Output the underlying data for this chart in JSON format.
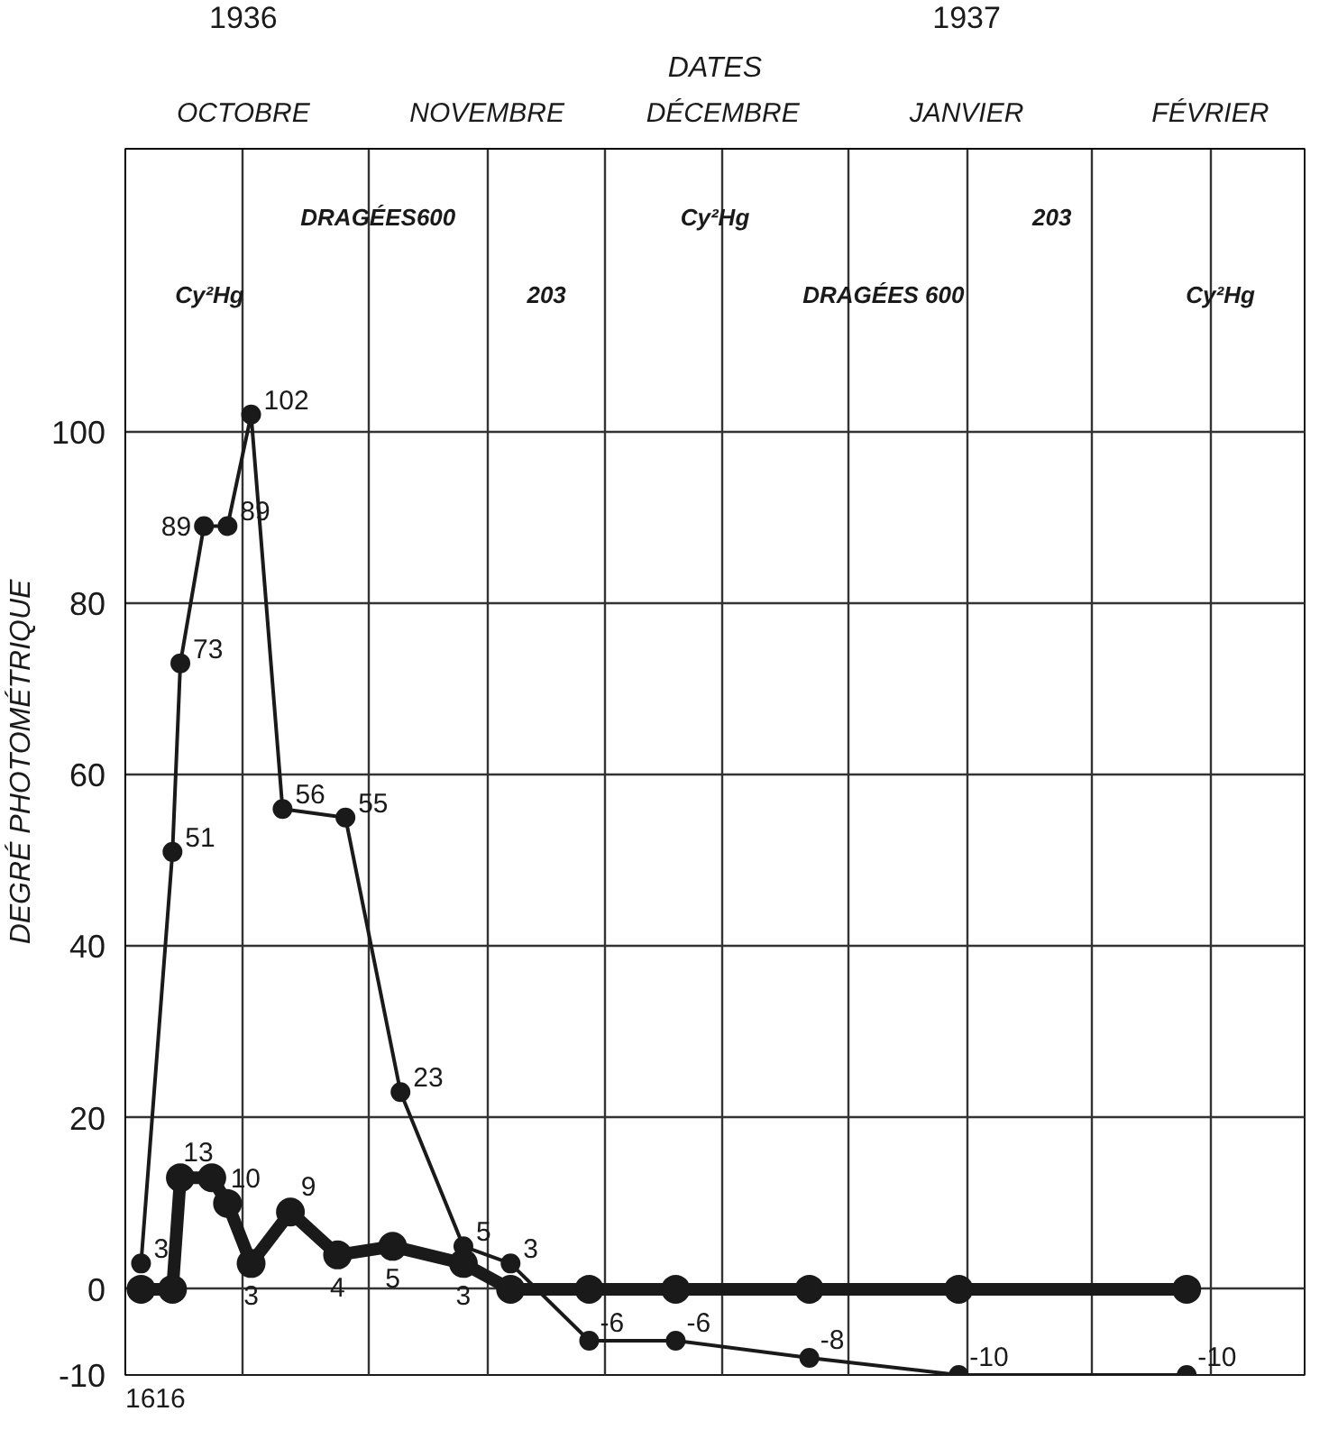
{
  "chart_data": {
    "type": "line",
    "xlabel": "DATES",
    "ylabel": "DEGRÉ PHOTOMÉTRIQUE",
    "xlim": [
      "1936-10-01",
      "1937-02-28"
    ],
    "xticks": [
      {
        "value": "1936-10-01",
        "label": null
      },
      {
        "value": "1936-10-16",
        "label": "OCTOBRE"
      },
      {
        "value": "1936-11-01",
        "label": null
      },
      {
        "value": "1936-11-16",
        "label": "NOVEMBRE"
      },
      {
        "value": "1936-12-01",
        "label": null
      },
      {
        "value": "1936-12-16",
        "label": "DÉCEMBRE"
      },
      {
        "value": "1937-01-01",
        "label": null
      },
      {
        "value": "1937-01-16",
        "label": "JANVIER"
      },
      {
        "value": "1937-02-01",
        "label": null
      },
      {
        "value": "1937-02-16",
        "label": "FÉVRIER"
      }
    ],
    "x2lim": [
      "1936-10-01",
      "1937-02-28"
    ],
    "x2ticks": [
      {
        "value": "1936-10-16",
        "label": "1936"
      },
      {
        "value": "1937-01-16",
        "label": "1937"
      }
    ],
    "ylim": [
      -10,
      133
    ],
    "yticks": [
      -10,
      0,
      20,
      40,
      60,
      80,
      100
    ],
    "grid": true,
    "marker": "circle",
    "line_style": "solid",
    "series": [
      {
        "color": "#1a1a1a",
        "x": [
          "1936-10-03",
          "1936-10-07",
          "1936-10-08",
          "1936-10-11",
          "1936-10-14",
          "1936-10-17",
          "1936-10-21",
          "1936-10-29",
          "1936-11-05",
          "1936-11-13",
          "1936-11-19",
          "1936-11-29",
          "1936-12-10",
          "1936-12-27",
          "1937-01-15",
          "1937-02-13"
        ],
        "values": [
          3,
          51,
          73,
          89,
          89,
          102,
          56,
          55,
          23,
          5,
          3,
          -6,
          -6,
          -8,
          -10,
          -10
        ],
        "value_labels": [
          "3",
          "51",
          "73",
          "89",
          "89",
          "102",
          "56",
          "55",
          "23",
          "5",
          "3",
          "-6",
          "-6",
          "-8",
          "-10",
          "-10"
        ]
      },
      {
        "color": "#1a1a1a",
        "x": [
          "1936-10-03",
          "1936-10-07",
          "1936-10-08",
          "1936-10-12",
          "1936-10-14",
          "1936-10-17",
          "1936-10-22",
          "1936-10-28",
          "1936-11-04",
          "1936-11-13",
          "1936-11-19",
          "1936-11-29",
          "1936-12-10",
          "1936-12-27",
          "1937-01-15",
          "1937-02-13"
        ],
        "values": [
          0,
          0,
          13,
          13,
          10,
          3,
          9,
          4,
          5,
          3,
          0,
          0,
          0,
          0,
          0,
          0
        ],
        "value_labels": [
          null,
          null,
          "13",
          null,
          "10",
          "3",
          "9",
          "4",
          "5",
          "3",
          null,
          null,
          null,
          null,
          null,
          null
        ]
      }
    ],
    "annotations": [
      "Cy²Hg",
      "DRAGÉES600",
      "203",
      "Cy²Hg",
      "DRAGÉES 600",
      "203",
      "Cy²Hg",
      "1616"
    ]
  }
}
